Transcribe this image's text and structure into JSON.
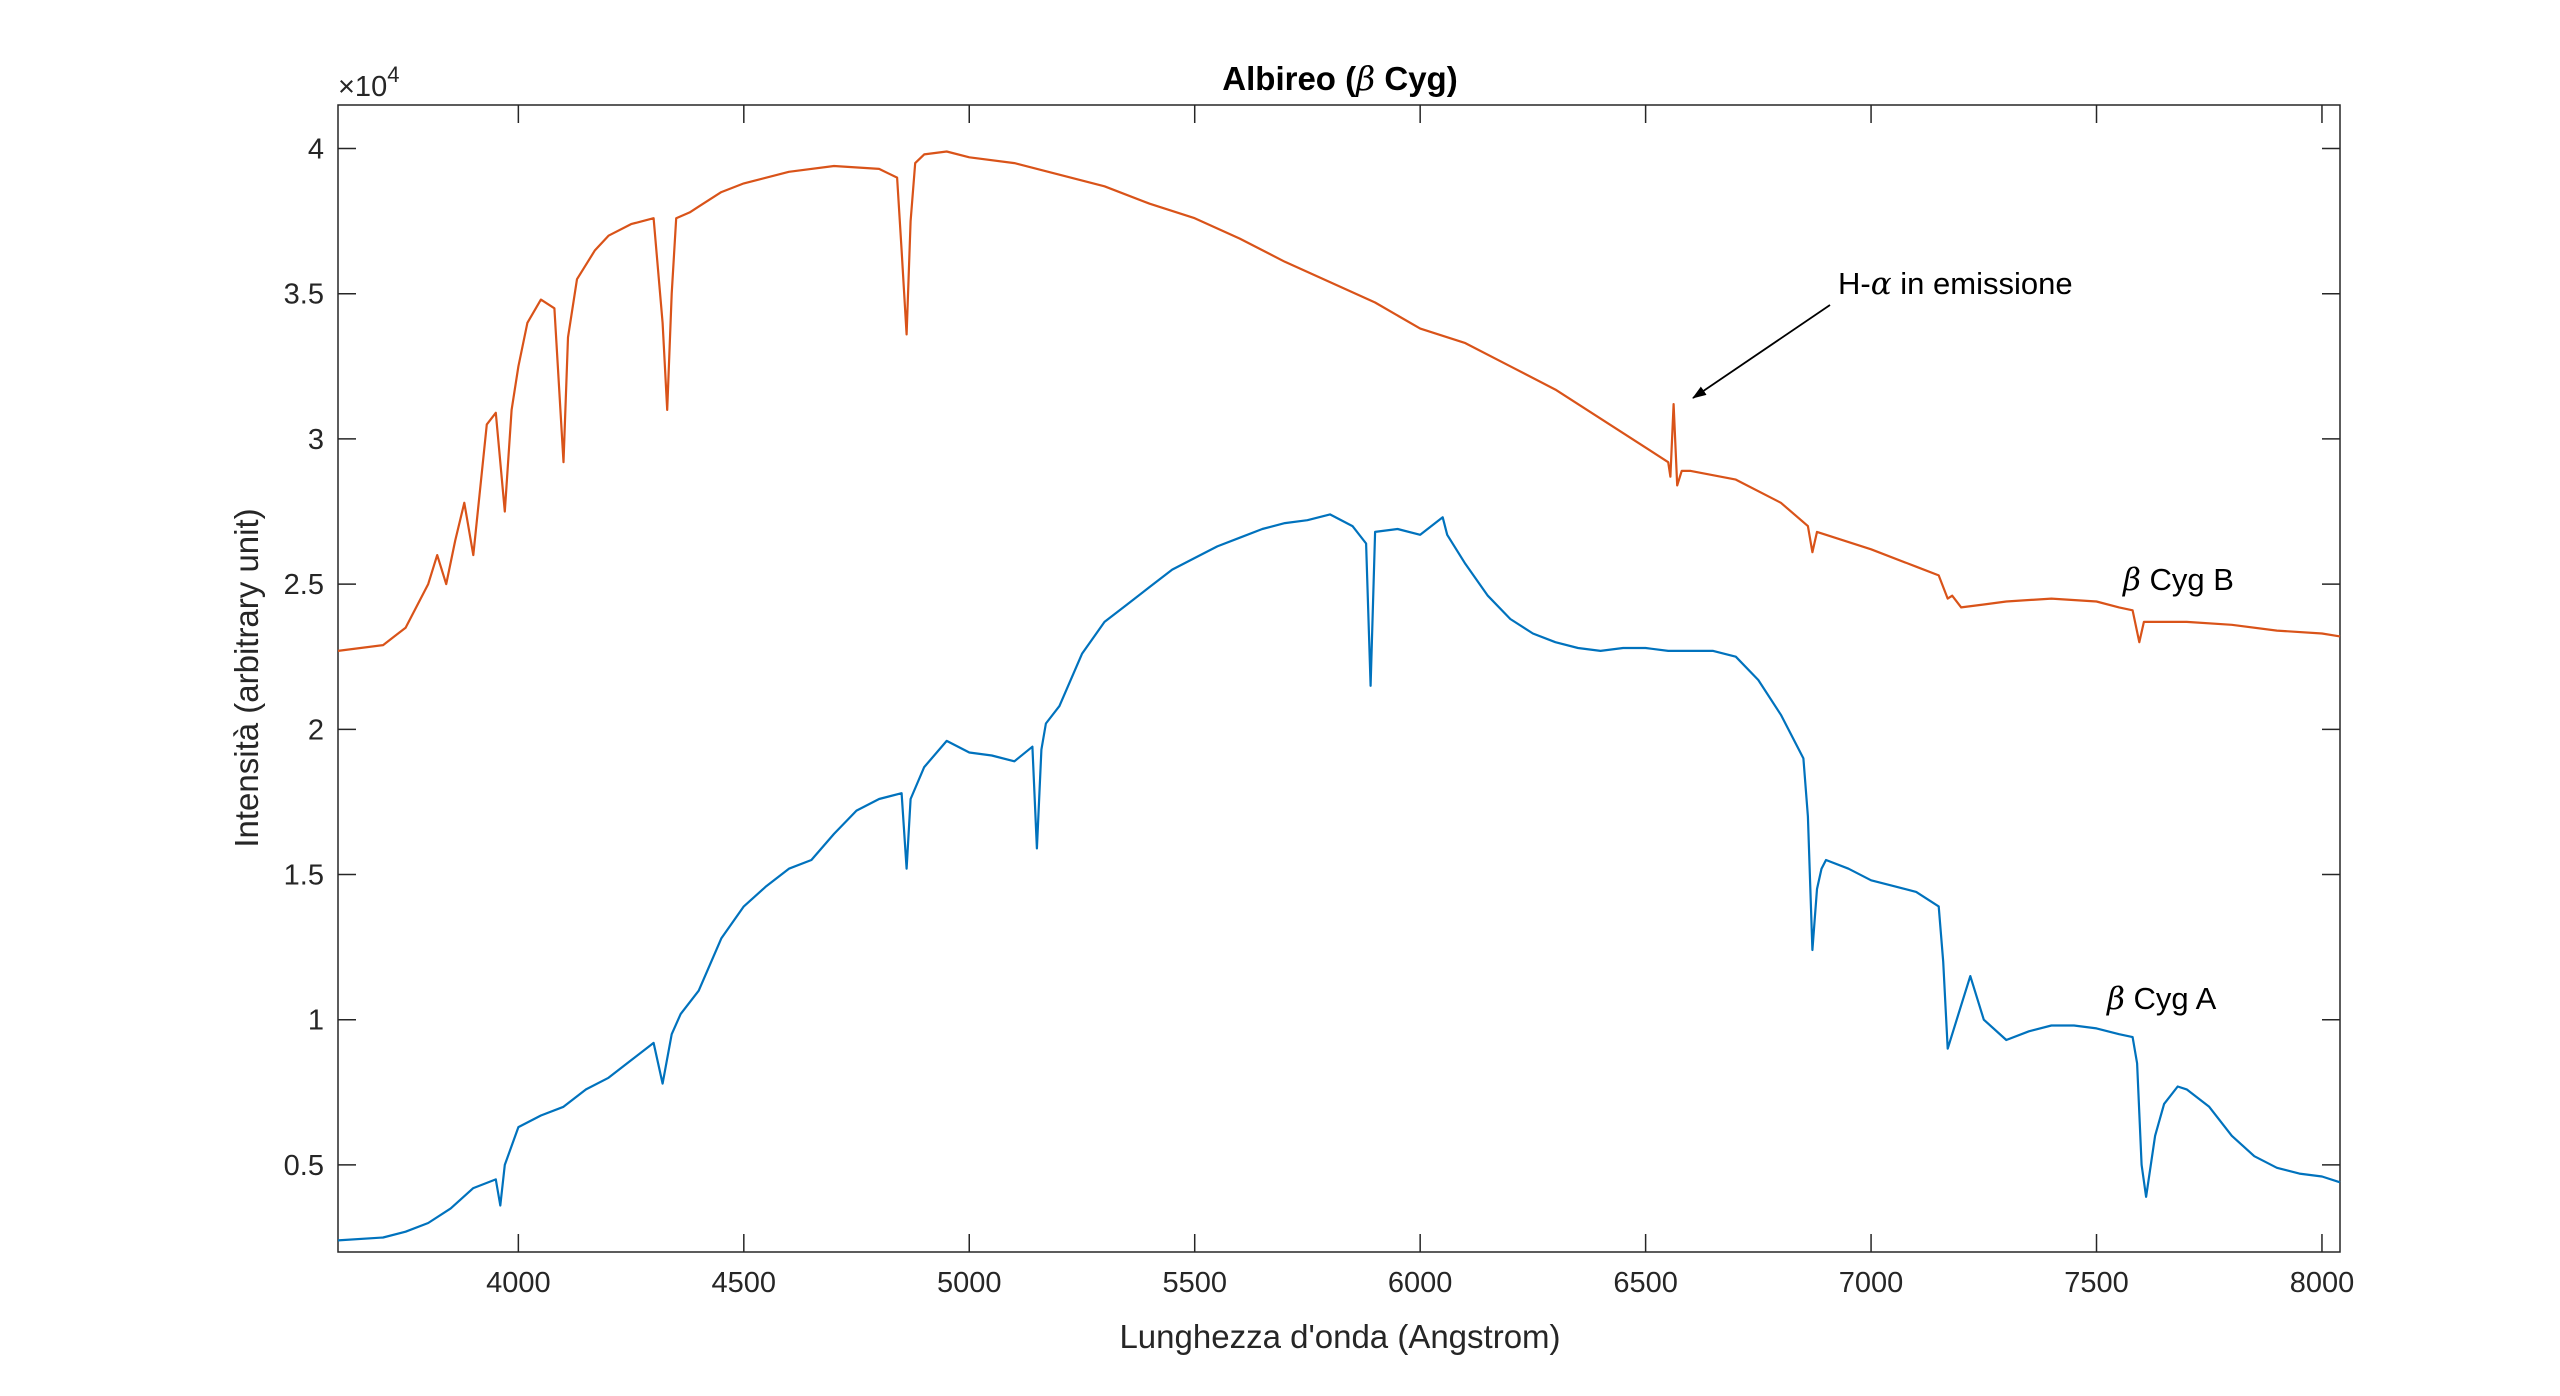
{
  "chart_data": {
    "type": "line",
    "title": "Albireo (β Cyg)",
    "title_parts": {
      "prefix": "Albireo (",
      "greek": "β",
      "suffix": " Cyg)"
    },
    "xlabel": "Lunghezza d'onda (Angstrom)",
    "ylabel": "Intensità (arbitrary unit)",
    "y_exponent_label": "×10",
    "y_exponent_power": "4",
    "xlim": [
      3600,
      8040
    ],
    "ylim": [
      2000,
      41500
    ],
    "x_ticks": [
      4000,
      4500,
      5000,
      5500,
      6000,
      6500,
      7000,
      7500,
      8000
    ],
    "x_tick_labels": [
      "4000",
      "4500",
      "5000",
      "5500",
      "6000",
      "6500",
      "7000",
      "7500",
      "8000"
    ],
    "y_ticks": [
      5000,
      10000,
      15000,
      20000,
      25000,
      30000,
      35000,
      40000
    ],
    "y_tick_labels": [
      "0.5",
      "1",
      "1.5",
      "2",
      "2.5",
      "3",
      "3.5",
      "4"
    ],
    "grid": false,
    "colors": {
      "series_a": "#0072BD",
      "series_b": "#D95319",
      "axis": "#262626"
    },
    "series": [
      {
        "name": "β Cyg B",
        "color": "#D95319",
        "x": [
          3600,
          3700,
          3750,
          3800,
          3820,
          3840,
          3860,
          3880,
          3900,
          3930,
          3950,
          3970,
          3985,
          4000,
          4020,
          4050,
          4080,
          4100,
          4110,
          4130,
          4170,
          4200,
          4250,
          4300,
          4320,
          4330,
          4340,
          4350,
          4380,
          4400,
          4450,
          4500,
          4600,
          4700,
          4800,
          4840,
          4850,
          4861,
          4870,
          4880,
          4900,
          4950,
          5000,
          5100,
          5200,
          5300,
          5400,
          5500,
          5600,
          5700,
          5800,
          5900,
          6000,
          6100,
          6200,
          6300,
          6400,
          6500,
          6550,
          6555,
          6562,
          6570,
          6580,
          6600,
          6700,
          6800,
          6860,
          6870,
          6880,
          6900,
          7000,
          7100,
          7150,
          7170,
          7180,
          7200,
          7250,
          7300,
          7400,
          7500,
          7550,
          7580,
          7595,
          7605,
          7620,
          7650,
          7700,
          7800,
          7900,
          8000,
          8040
        ],
        "y": [
          22700,
          22900,
          23500,
          25000,
          26000,
          25000,
          26500,
          27800,
          26000,
          30500,
          30900,
          27500,
          31000,
          32500,
          34000,
          34800,
          34500,
          29200,
          33500,
          35500,
          36500,
          37000,
          37400,
          37600,
          34000,
          31000,
          35000,
          37600,
          37800,
          38000,
          38500,
          38800,
          39200,
          39400,
          39300,
          39000,
          36500,
          33600,
          37500,
          39500,
          39800,
          39900,
          39700,
          39500,
          39100,
          38700,
          38100,
          37600,
          36900,
          36100,
          35400,
          34700,
          33800,
          33300,
          32500,
          31700,
          30700,
          29700,
          29200,
          28700,
          31200,
          28400,
          28900,
          28900,
          28600,
          27800,
          27000,
          26100,
          26800,
          26700,
          26200,
          25600,
          25300,
          24500,
          24600,
          24200,
          24300,
          24400,
          24500,
          24400,
          24200,
          24100,
          23000,
          23700,
          23700,
          23700,
          23700,
          23600,
          23400,
          23300,
          23200
        ]
      },
      {
        "name": "β Cyg A",
        "color": "#0072BD",
        "x": [
          3600,
          3700,
          3750,
          3800,
          3850,
          3900,
          3950,
          3960,
          3970,
          4000,
          4050,
          4100,
          4150,
          4200,
          4250,
          4300,
          4320,
          4340,
          4360,
          4400,
          4450,
          4500,
          4550,
          4600,
          4650,
          4700,
          4750,
          4800,
          4850,
          4861,
          4870,
          4900,
          4950,
          5000,
          5050,
          5100,
          5140,
          5150,
          5160,
          5170,
          5200,
          5250,
          5300,
          5350,
          5400,
          5450,
          5500,
          5550,
          5600,
          5650,
          5700,
          5750,
          5800,
          5850,
          5880,
          5890,
          5900,
          5950,
          6000,
          6050,
          6060,
          6100,
          6150,
          6200,
          6250,
          6300,
          6350,
          6400,
          6450,
          6500,
          6550,
          6600,
          6650,
          6700,
          6750,
          6800,
          6850,
          6860,
          6870,
          6880,
          6890,
          6900,
          6950,
          7000,
          7050,
          7100,
          7150,
          7160,
          7170,
          7200,
          7220,
          7250,
          7300,
          7350,
          7400,
          7450,
          7500,
          7550,
          7580,
          7590,
          7600,
          7610,
          7630,
          7650,
          7680,
          7700,
          7750,
          7800,
          7850,
          7900,
          7950,
          8000,
          8040
        ],
        "y": [
          2400,
          2500,
          2700,
          3000,
          3500,
          4200,
          4500,
          3600,
          5000,
          6300,
          6700,
          7000,
          7600,
          8000,
          8600,
          9200,
          7800,
          9500,
          10200,
          11000,
          12800,
          13900,
          14600,
          15200,
          15500,
          16400,
          17200,
          17600,
          17800,
          15200,
          17600,
          18700,
          19600,
          19200,
          19100,
          18900,
          19400,
          15900,
          19300,
          20200,
          20800,
          22600,
          23700,
          24300,
          24900,
          25500,
          25900,
          26300,
          26600,
          26900,
          27100,
          27200,
          27400,
          27000,
          26400,
          21500,
          26800,
          26900,
          26700,
          27300,
          26700,
          25700,
          24600,
          23800,
          23300,
          23000,
          22800,
          22700,
          22800,
          22800,
          22700,
          22700,
          22700,
          22500,
          21700,
          20500,
          19000,
          17000,
          12400,
          14500,
          15200,
          15500,
          15200,
          14800,
          14600,
          14400,
          13900,
          12000,
          9000,
          10500,
          11500,
          10000,
          9300,
          9600,
          9800,
          9800,
          9700,
          9500,
          9400,
          8500,
          5000,
          3900,
          6000,
          7100,
          7700,
          7600,
          7000,
          6000,
          5300,
          4900,
          4700,
          4600,
          4400
        ]
      }
    ],
    "annotations": [
      {
        "text_prefix": "H-",
        "greek": "α",
        "text_suffix": " in emissione",
        "arrow_to_x": 6562,
        "arrow_to_y": 31200
      },
      {
        "greek": "β",
        "text_suffix": " Cyg B",
        "series": "β Cyg B"
      },
      {
        "greek": "β",
        "text_suffix": " Cyg A",
        "series": "β Cyg A"
      }
    ]
  }
}
